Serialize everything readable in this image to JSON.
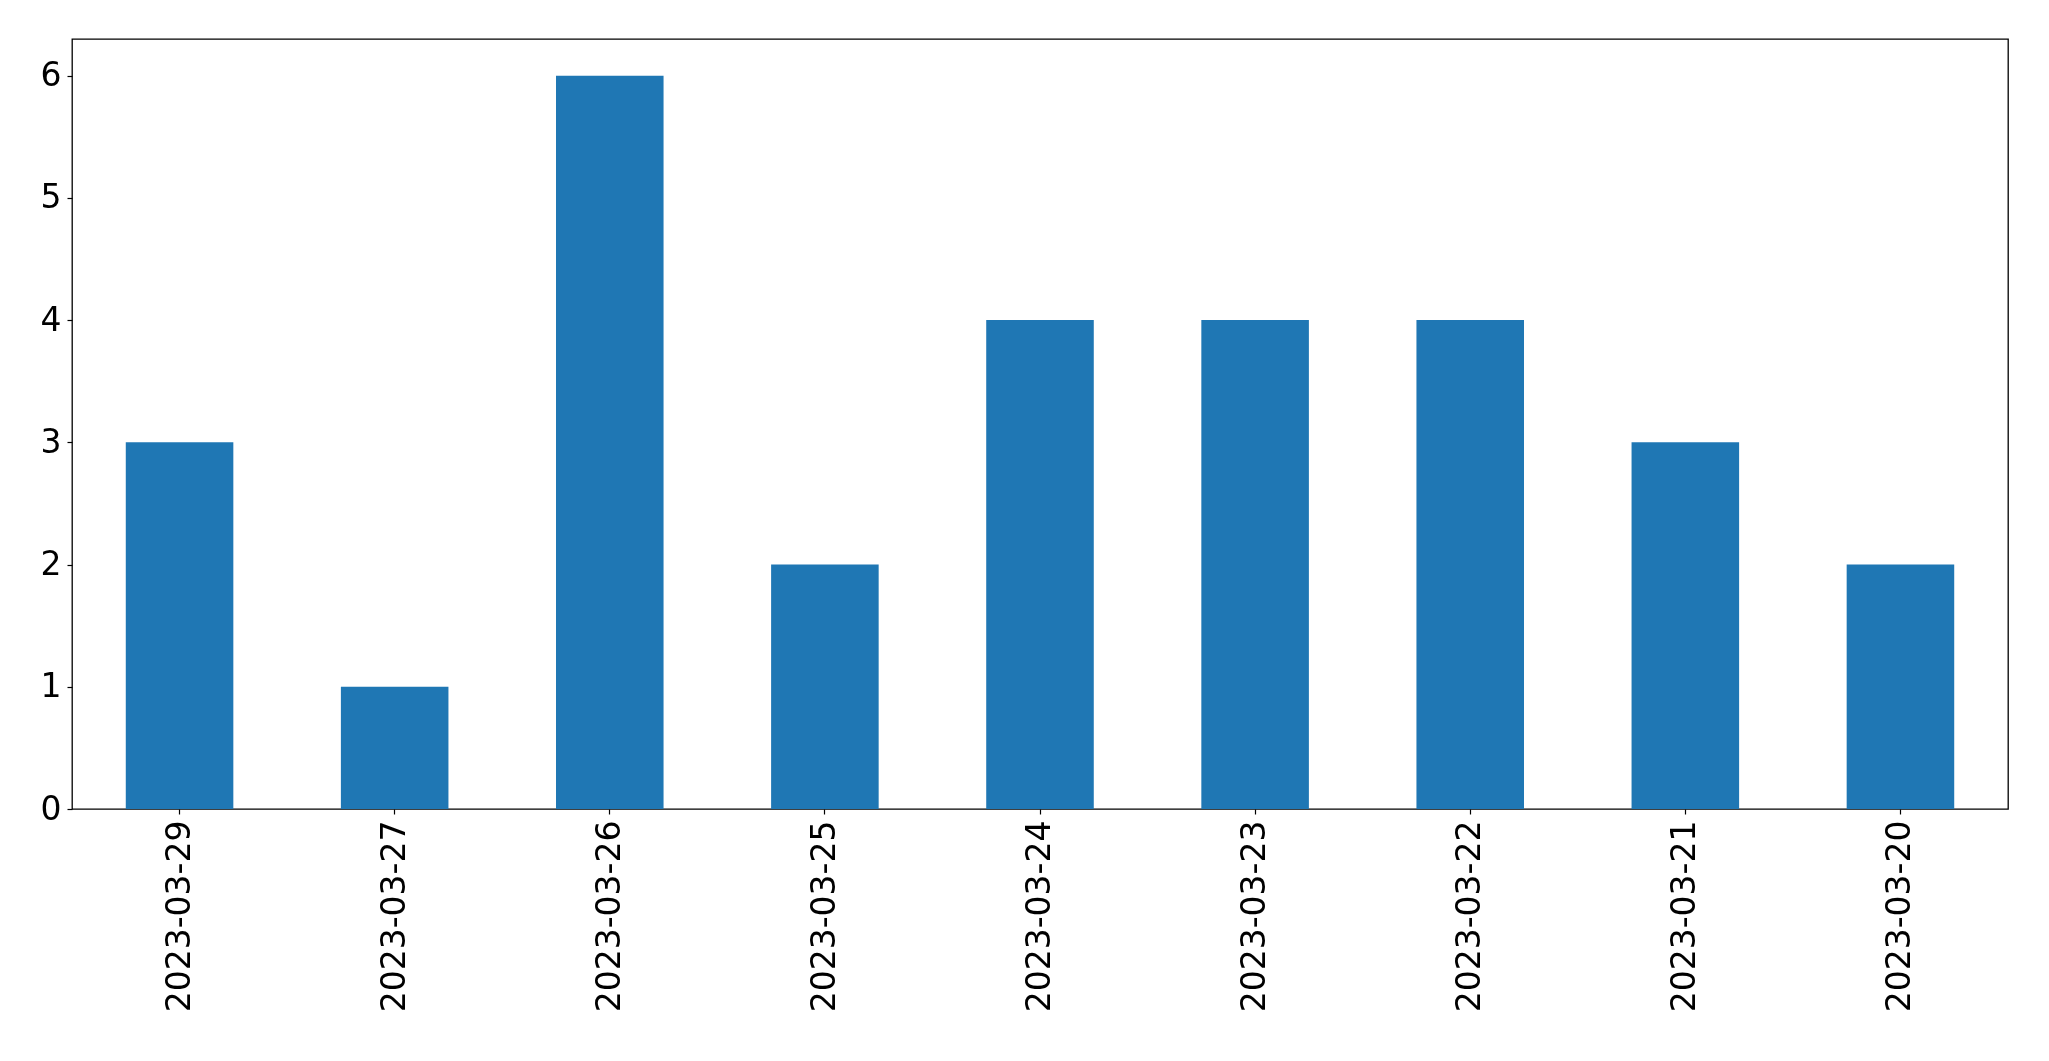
{
  "chart_data": {
    "type": "bar",
    "categories": [
      "2023-03-29",
      "2023-03-27",
      "2023-03-26",
      "2023-03-25",
      "2023-03-24",
      "2023-03-23",
      "2023-03-22",
      "2023-03-21",
      "2023-03-20"
    ],
    "values": [
      3,
      1,
      6,
      2,
      4,
      4,
      4,
      3,
      2
    ],
    "color": "#1f77b4",
    "ylim": [
      0,
      6.3
    ],
    "yticks": [
      0,
      1,
      2,
      3,
      4,
      5,
      6
    ]
  }
}
